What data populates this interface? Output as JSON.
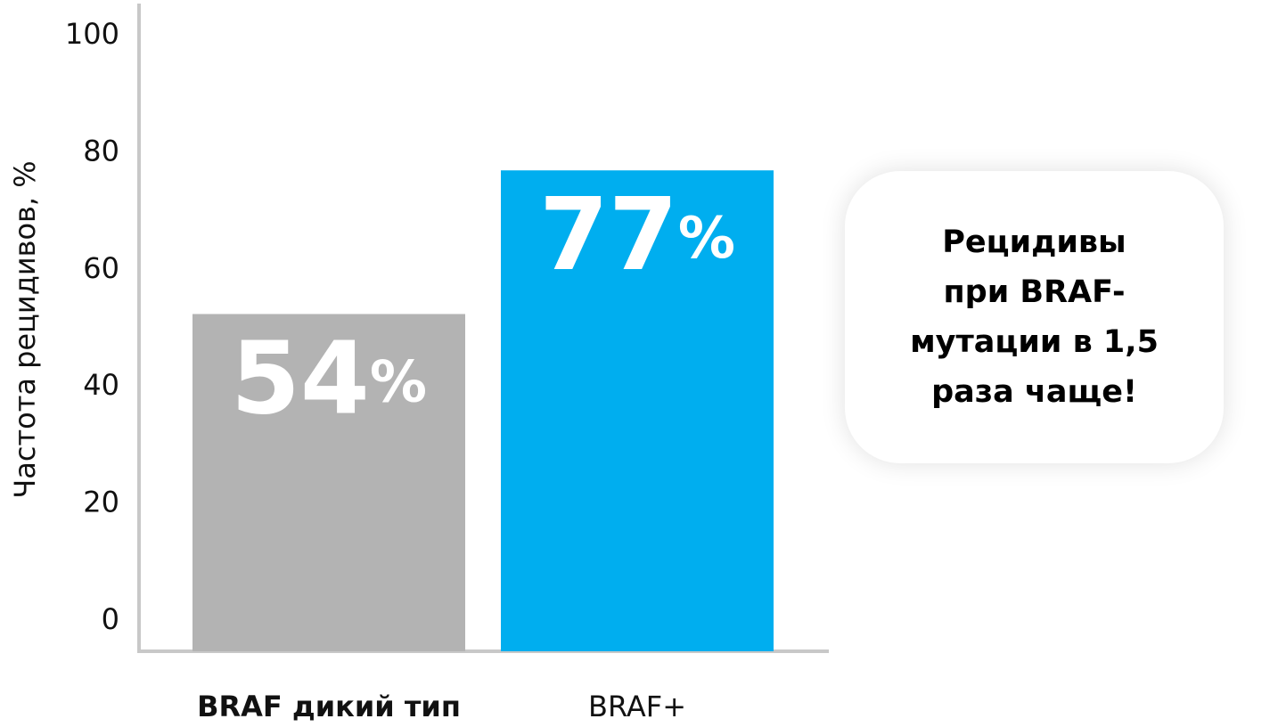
{
  "chart_data": {
    "type": "bar",
    "y_label": "Частота рецидивов, %",
    "categories": [
      "BRAF дикий тип",
      "BRAF+"
    ],
    "values": [
      54,
      77
    ],
    "value_labels": [
      "54%",
      "77%"
    ],
    "colors": [
      "#b3b3b3",
      "#00aeef"
    ],
    "ylim": [
      0,
      100
    ],
    "yticks": [
      0,
      20,
      40,
      60,
      80,
      100
    ],
    "grid": false,
    "annotation": [
      "Рецидивы",
      "при BRAF-",
      "мутации в 1,5",
      "раза чаще!"
    ]
  }
}
